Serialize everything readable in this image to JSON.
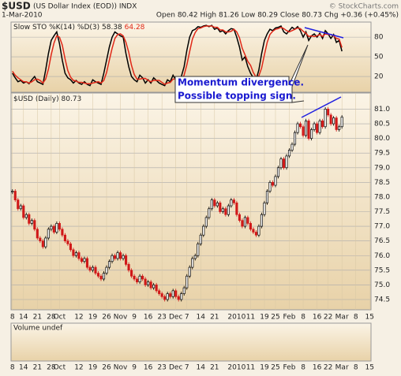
{
  "chart_data": [
    {
      "type": "line",
      "legend": "Slow STO %K(14) %D(3)",
      "ylim": [
        -4,
        103
      ],
      "yticks": [
        20,
        50,
        80
      ],
      "grid": true,
      "series": [
        {
          "name": "%K",
          "color": "#000000",
          "values": [
            25,
            18,
            12,
            14,
            10,
            12,
            9,
            15,
            20,
            12,
            10,
            8,
            30,
            55,
            75,
            82,
            88,
            70,
            45,
            25,
            18,
            15,
            10,
            14,
            10,
            8,
            12,
            8,
            6,
            15,
            12,
            10,
            8,
            25,
            45,
            65,
            80,
            88,
            85,
            82,
            80,
            55,
            35,
            20,
            15,
            12,
            22,
            18,
            10,
            15,
            10,
            18,
            14,
            10,
            8,
            6,
            15,
            12,
            22,
            15,
            10,
            20,
            35,
            60,
            80,
            90,
            92,
            96,
            95,
            97,
            98,
            96,
            98,
            92,
            94,
            88,
            90,
            85,
            90,
            93,
            92,
            80,
            65,
            45,
            50,
            35,
            25,
            18,
            15,
            30,
            55,
            75,
            85,
            92,
            90,
            94,
            95,
            97,
            88,
            85,
            90,
            95,
            92,
            96,
            90,
            80,
            88,
            75,
            82,
            85,
            80,
            86,
            78,
            90,
            85,
            78,
            84,
            72,
            75,
            58.38,
            null,
            null,
            null,
            null,
            null,
            null,
            null,
            null,
            null,
            null
          ]
        },
        {
          "name": "%D",
          "color": "#e02818",
          "values": [
            28,
            22,
            18,
            15,
            12,
            12,
            10,
            12,
            15,
            16,
            14,
            10,
            16,
            31,
            53,
            71,
            82,
            80,
            68,
            47,
            29,
            19,
            14,
            13,
            11,
            11,
            10,
            9,
            9,
            10,
            11,
            12,
            10,
            14,
            26,
            45,
            63,
            78,
            84,
            85,
            82,
            72,
            57,
            37,
            23,
            16,
            16,
            17,
            17,
            14,
            12,
            14,
            14,
            14,
            11,
            8,
            10,
            11,
            16,
            16,
            16,
            15,
            22,
            38,
            58,
            77,
            87,
            93,
            94,
            96,
            97,
            97,
            97,
            95,
            95,
            91,
            91,
            88,
            88,
            89,
            92,
            88,
            79,
            63,
            53,
            43,
            37,
            26,
            19,
            21,
            33,
            53,
            72,
            84,
            89,
            92,
            93,
            95,
            93,
            90,
            88,
            90,
            92,
            94,
            93,
            89,
            86,
            81,
            82,
            81,
            82,
            84,
            81,
            85,
            84,
            84,
            82,
            78,
            77,
            64.28,
            null,
            null,
            null,
            null,
            null,
            null,
            null,
            null,
            null,
            null
          ]
        }
      ]
    },
    {
      "type": "candlestick",
      "title": "$USD",
      "subtitle": "(US Dollar Index (EOD)) INDX",
      "source": "© StockCharts.com",
      "date": "1-Mar-2010",
      "quote": "Open 80.42 High 81.26 Low 80.29 Close 80.73 Chg +0.36 (+0.45%)",
      "legend": "$USD (Daily)",
      "annotation": [
        "Momentum divergence.",
        "Possible topping sign."
      ],
      "volume_label": "Volume undef",
      "up_color": "#000000",
      "down_color": "#d01818",
      "categories": [
        "8",
        null,
        null,
        null,
        "14",
        null,
        null,
        null,
        null,
        "21",
        null,
        null,
        null,
        null,
        "28",
        null,
        null,
        "Oct",
        null,
        null,
        null,
        null,
        null,
        null,
        "12",
        null,
        null,
        null,
        null,
        "19",
        null,
        null,
        null,
        null,
        "26",
        null,
        null,
        null,
        null,
        "Nov",
        null,
        null,
        null,
        null,
        "9",
        null,
        null,
        null,
        null,
        "16",
        null,
        null,
        null,
        null,
        "23",
        null,
        null,
        null,
        null,
        "Dec",
        null,
        null,
        null,
        "7",
        null,
        null,
        null,
        null,
        "14",
        null,
        null,
        null,
        null,
        "21",
        null,
        null,
        null,
        null,
        null,
        null,
        null,
        "2010",
        null,
        null,
        null,
        null,
        "11",
        null,
        null,
        null,
        null,
        "19",
        null,
        null,
        null,
        "25",
        null,
        null,
        null,
        null,
        "Feb",
        null,
        null,
        null,
        null,
        "8",
        null,
        null,
        null,
        null,
        "16",
        null,
        null,
        null,
        "22",
        null,
        null,
        null,
        null,
        "Mar",
        null,
        null,
        null,
        null,
        "8",
        null,
        null,
        null,
        null,
        "15"
      ],
      "values": [
        78.2,
        77.9,
        77.6,
        77.7,
        77.3,
        77.4,
        77.1,
        77.2,
        76.9,
        76.6,
        76.5,
        76.3,
        76.6,
        76.9,
        77.0,
        76.8,
        77.1,
        76.9,
        76.7,
        76.5,
        76.4,
        76.2,
        76.0,
        76.1,
        75.9,
        75.8,
        75.9,
        75.6,
        75.5,
        75.6,
        75.4,
        75.3,
        75.2,
        75.4,
        75.6,
        75.8,
        76.0,
        75.9,
        76.1,
        75.9,
        76.0,
        75.7,
        75.5,
        75.3,
        75.2,
        75.1,
        75.3,
        75.2,
        75.0,
        75.1,
        74.9,
        75.0,
        74.8,
        74.7,
        74.6,
        74.5,
        74.7,
        74.6,
        74.8,
        74.6,
        74.5,
        74.7,
        74.9,
        75.3,
        75.6,
        75.9,
        76.0,
        76.4,
        76.7,
        77.0,
        77.3,
        77.6,
        77.9,
        77.7,
        77.8,
        77.5,
        77.6,
        77.4,
        77.7,
        77.9,
        77.8,
        77.4,
        77.2,
        77.0,
        77.3,
        77.1,
        76.9,
        76.8,
        76.7,
        77.0,
        77.4,
        77.8,
        78.2,
        78.5,
        78.4,
        78.7,
        79.0,
        79.3,
        79.0,
        79.4,
        79.6,
        79.8,
        80.2,
        80.5,
        80.4,
        80.1,
        80.6,
        80.0,
        80.3,
        80.5,
        80.2,
        80.6,
        80.4,
        81.0,
        80.8,
        80.5,
        80.7,
        80.3,
        80.4,
        80.73,
        null,
        null,
        null,
        null,
        null,
        null,
        null,
        null,
        null,
        null
      ],
      "ylim": [
        74.15,
        81.55
      ],
      "yticks": [
        74.5,
        {
          "value": 75,
          "label": "75.0"
        },
        75.5,
        {
          "value": 76,
          "label": "76.0"
        },
        76.5,
        {
          "value": 77,
          "label": "77.0"
        },
        77.5,
        {
          "value": 78,
          "label": "78.0"
        },
        78.5,
        {
          "value": 79,
          "label": "79.0"
        },
        79.5,
        {
          "value": 80,
          "label": "80.0"
        },
        80.5,
        {
          "value": 81,
          "label": "81.0"
        }
      ]
    }
  ]
}
